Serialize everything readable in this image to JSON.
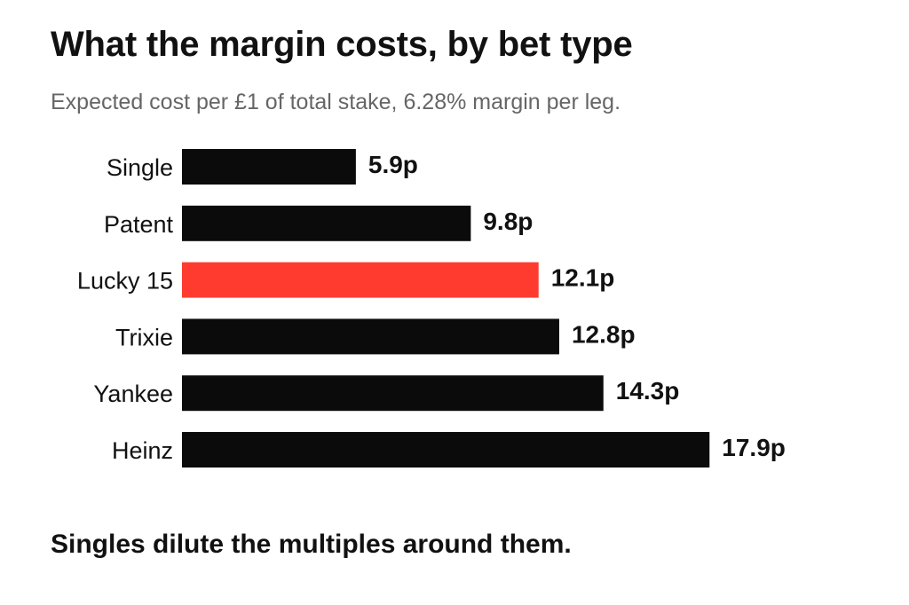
{
  "chart_data": {
    "type": "bar",
    "orientation": "horizontal",
    "title": "What the margin costs, by bet type",
    "subtitle": "Expected cost per £1 of total stake, 6.28% margin per leg.",
    "categories": [
      "Single",
      "Patent",
      "Lucky 15",
      "Trixie",
      "Yankee",
      "Heinz"
    ],
    "values": [
      5.9,
      9.8,
      12.1,
      12.8,
      14.3,
      17.9
    ],
    "value_labels": [
      "5.9p",
      "9.8p",
      "12.1p",
      "12.8p",
      "14.3p",
      "17.9p"
    ],
    "unit": "p",
    "highlight": "Lucky 15",
    "colors": {
      "default": "#0b0b0b",
      "highlight": "#ff3b30",
      "highlight_label": "#e03c31"
    },
    "grid": false,
    "legend": "none"
  },
  "footnote": "Singles dilute the multiples around them."
}
